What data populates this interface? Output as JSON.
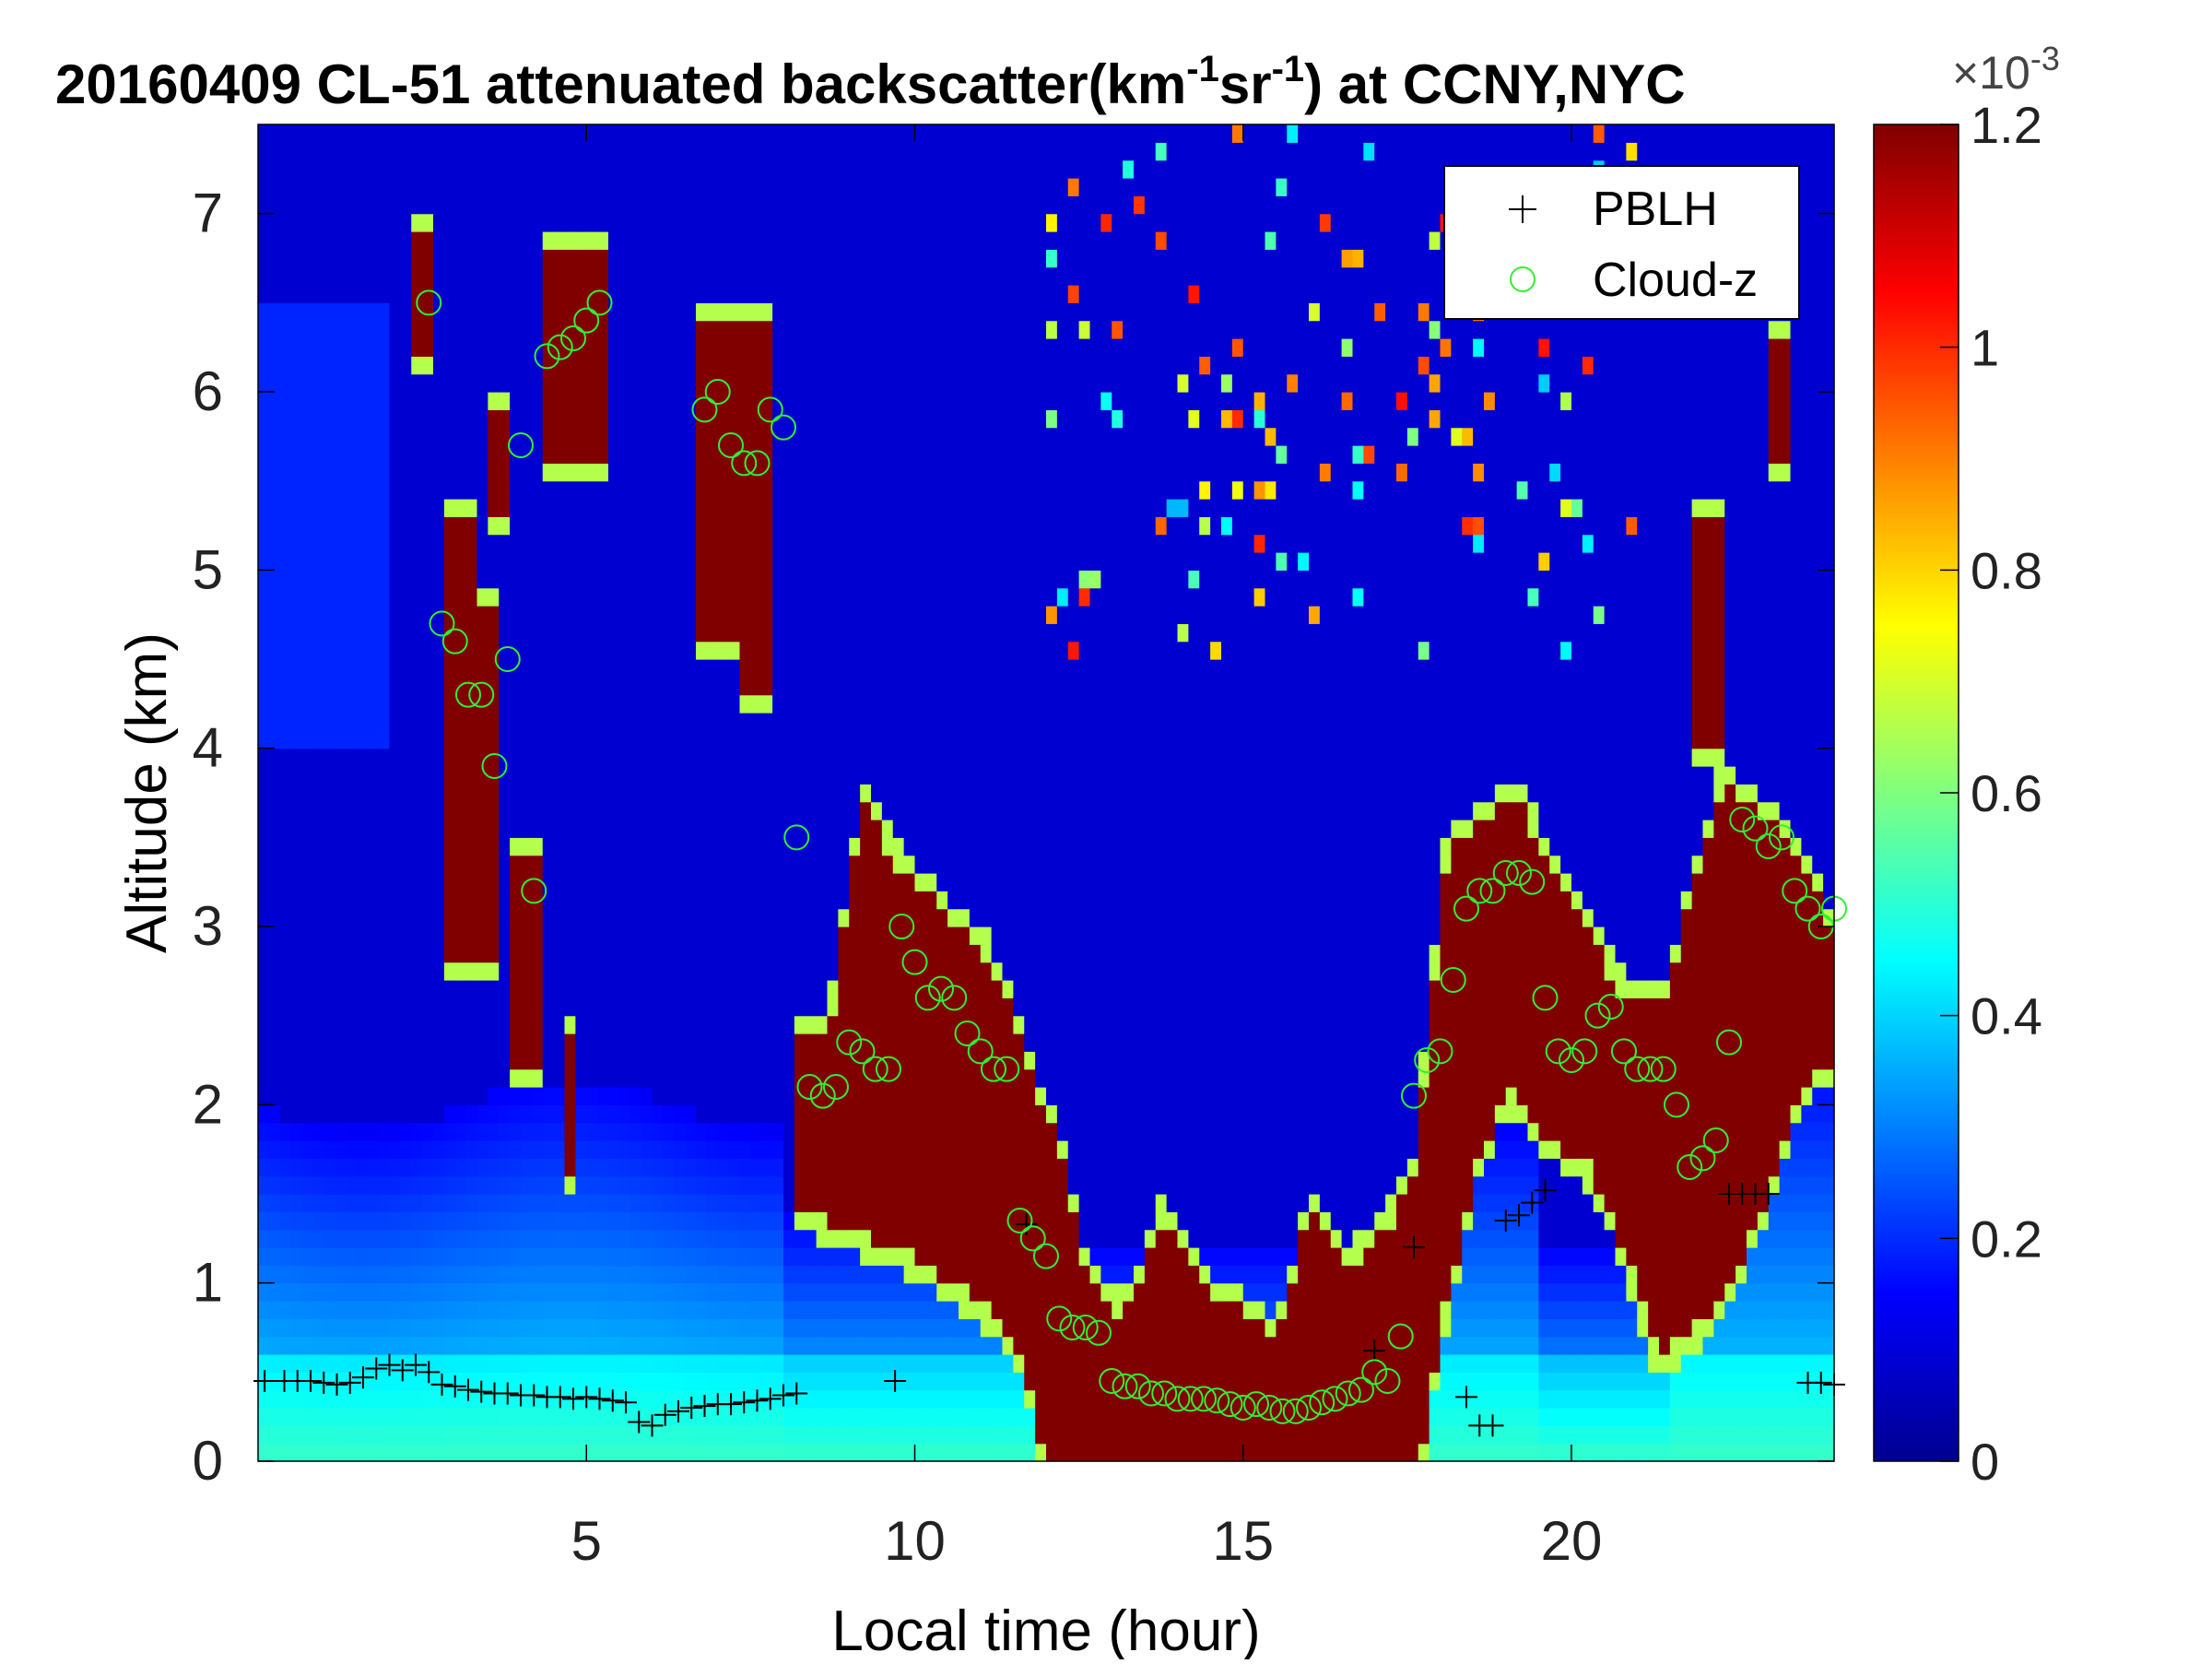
{
  "chart_data": {
    "type": "heatmap",
    "title": {
      "prefix": "20160409  CL-51 attenuated backscatter(km",
      "sup1": "-1",
      "mid": "sr",
      "sup2": "-1",
      "suffix": ") at CCNY,NYC"
    },
    "xlabel": "Local time (hour)",
    "ylabel": "Altitude (km)",
    "xlim": [
      0,
      24
    ],
    "ylim": [
      0,
      7.5
    ],
    "xticks": [
      5,
      10,
      15,
      20
    ],
    "yticks": [
      0,
      1,
      2,
      3,
      4,
      5,
      6,
      7
    ],
    "colorbar": {
      "clim": [
        0,
        0.0012
      ],
      "ticks": [
        "0",
        "0.2",
        "0.4",
        "0.6",
        "0.8",
        "1",
        "1.2"
      ],
      "exponent_label": "×10",
      "exponent_sup": "-3",
      "colormap": "jet"
    },
    "legend": {
      "placement": "top-right",
      "entries": [
        {
          "label": "PBLH",
          "marker": "plus",
          "color": "#000000"
        },
        {
          "label": "Cloud-z",
          "marker": "circle",
          "color": "#33ee33"
        }
      ]
    },
    "series": [
      {
        "name": "PBLH",
        "x": [
          0.1,
          0.4,
          0.6,
          0.8,
          1.0,
          1.2,
          1.4,
          1.6,
          1.8,
          2.0,
          2.2,
          2.4,
          2.6,
          2.8,
          3.0,
          3.2,
          3.4,
          3.6,
          3.8,
          4.0,
          4.2,
          4.4,
          4.6,
          4.8,
          5.0,
          5.2,
          5.4,
          5.6,
          5.8,
          6.0,
          6.2,
          6.4,
          6.6,
          6.8,
          7.0,
          7.2,
          7.4,
          7.6,
          7.8,
          8.0,
          8.2,
          9.7,
          11.7,
          17.0,
          17.6,
          18.4,
          18.6,
          18.8,
          19.0,
          19.2,
          19.4,
          19.6,
          22.4,
          22.6,
          22.8,
          23.0,
          23.6,
          23.8,
          24.0
        ],
        "y": [
          0.45,
          0.45,
          0.45,
          0.45,
          0.44,
          0.43,
          0.44,
          0.47,
          0.52,
          0.54,
          0.51,
          0.54,
          0.5,
          0.43,
          0.42,
          0.4,
          0.39,
          0.38,
          0.38,
          0.37,
          0.37,
          0.36,
          0.36,
          0.35,
          0.36,
          0.35,
          0.34,
          0.33,
          0.22,
          0.2,
          0.26,
          0.28,
          0.3,
          0.31,
          0.32,
          0.32,
          0.33,
          0.34,
          0.35,
          0.37,
          0.38,
          0.45,
          1.33,
          0.62,
          1.2,
          0.36,
          0.2,
          0.2,
          1.35,
          1.38,
          1.45,
          1.52,
          1.5,
          1.5,
          1.5,
          1.5,
          0.44,
          0.44,
          0.43
        ]
      },
      {
        "name": "Cloud-z",
        "x": [
          2.6,
          2.8,
          3.0,
          3.2,
          3.4,
          3.6,
          3.8,
          4.0,
          4.2,
          4.4,
          4.6,
          4.8,
          5.0,
          5.2,
          6.8,
          7.0,
          7.2,
          7.4,
          7.6,
          7.8,
          8.0,
          8.2,
          8.4,
          8.6,
          8.8,
          9.0,
          9.2,
          9.4,
          9.6,
          9.8,
          10.0,
          10.2,
          10.4,
          10.6,
          10.8,
          11.0,
          11.2,
          11.4,
          11.6,
          11.8,
          12.0,
          12.2,
          12.4,
          12.6,
          12.8,
          13.0,
          13.2,
          13.4,
          13.6,
          13.8,
          14.0,
          14.2,
          14.4,
          14.6,
          14.8,
          15.0,
          15.2,
          15.4,
          15.6,
          15.8,
          16.0,
          16.2,
          16.4,
          16.6,
          16.8,
          17.0,
          17.2,
          17.4,
          17.6,
          17.8,
          18.0,
          18.2,
          18.4,
          18.6,
          18.8,
          19.0,
          19.2,
          19.4,
          19.6,
          19.8,
          20.0,
          20.2,
          20.4,
          20.6,
          20.8,
          21.0,
          21.2,
          21.4,
          21.6,
          21.8,
          22.0,
          22.2,
          22.4,
          22.6,
          22.8,
          23.0,
          23.2,
          23.4,
          23.6,
          23.8,
          24.0
        ],
        "y": [
          6.5,
          4.7,
          4.6,
          4.3,
          4.3,
          3.9,
          4.5,
          5.7,
          3.2,
          6.2,
          6.25,
          6.3,
          6.4,
          6.5,
          5.9,
          6.0,
          5.7,
          5.6,
          5.6,
          5.9,
          5.8,
          3.5,
          2.1,
          2.05,
          2.1,
          2.35,
          2.3,
          2.2,
          2.2,
          3.0,
          2.8,
          2.6,
          2.65,
          2.6,
          2.4,
          2.3,
          2.2,
          2.2,
          1.35,
          1.25,
          1.15,
          0.8,
          0.75,
          0.75,
          0.72,
          0.45,
          0.42,
          0.42,
          0.38,
          0.38,
          0.35,
          0.35,
          0.35,
          0.34,
          0.32,
          0.3,
          0.32,
          0.3,
          0.28,
          0.28,
          0.3,
          0.33,
          0.35,
          0.38,
          0.4,
          0.5,
          0.45,
          0.7,
          2.05,
          2.25,
          2.3,
          2.7,
          3.1,
          3.2,
          3.2,
          3.3,
          3.3,
          3.25,
          2.6,
          2.3,
          2.25,
          2.3,
          2.5,
          2.55,
          2.3,
          2.2,
          2.2,
          2.2,
          2.0,
          1.65,
          1.7,
          1.8,
          2.35,
          3.6,
          3.55,
          3.45,
          3.5,
          3.2,
          3.1,
          3.0,
          3.1
        ]
      }
    ]
  }
}
